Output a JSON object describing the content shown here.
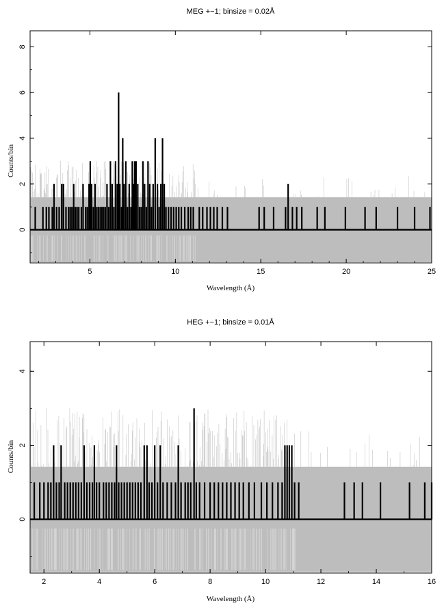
{
  "chart_data": [
    {
      "type": "bar",
      "title": "MEG +−1; binsize = 0.02Å",
      "xlabel": "Wavelength (Å)",
      "ylabel": "Counts/bin",
      "xlim": [
        1.5,
        25
      ],
      "ylim": [
        -1.45,
        8.7
      ],
      "xticks": [
        5,
        10,
        15,
        20,
        25
      ],
      "yticks": [
        0,
        2,
        4,
        6,
        8
      ],
      "grid": false,
      "error_band": {
        "upper": 1.42,
        "lower": -1.42,
        "dense_to": 11.2,
        "sparse_upper": 2.4,
        "dense_upper": 2.4
      },
      "bins": [
        {
          "x": 1.8,
          "y": 1
        },
        {
          "x": 2.25,
          "y": 1
        },
        {
          "x": 2.45,
          "y": 1
        },
        {
          "x": 2.6,
          "y": 1
        },
        {
          "x": 2.8,
          "y": 1
        },
        {
          "x": 2.9,
          "y": 2
        },
        {
          "x": 3.05,
          "y": 1
        },
        {
          "x": 3.2,
          "y": 1
        },
        {
          "x": 3.35,
          "y": 2
        },
        {
          "x": 3.45,
          "y": 2
        },
        {
          "x": 3.6,
          "y": 1
        },
        {
          "x": 3.75,
          "y": 1
        },
        {
          "x": 3.85,
          "y": 1
        },
        {
          "x": 3.95,
          "y": 1
        },
        {
          "x": 4.05,
          "y": 2
        },
        {
          "x": 4.15,
          "y": 1
        },
        {
          "x": 4.25,
          "y": 1
        },
        {
          "x": 4.35,
          "y": 1
        },
        {
          "x": 4.5,
          "y": 1
        },
        {
          "x": 4.6,
          "y": 2
        },
        {
          "x": 4.75,
          "y": 1
        },
        {
          "x": 4.85,
          "y": 1
        },
        {
          "x": 4.95,
          "y": 2
        },
        {
          "x": 5.02,
          "y": 3
        },
        {
          "x": 5.1,
          "y": 2
        },
        {
          "x": 5.2,
          "y": 1
        },
        {
          "x": 5.3,
          "y": 2
        },
        {
          "x": 5.4,
          "y": 1
        },
        {
          "x": 5.5,
          "y": 1
        },
        {
          "x": 5.6,
          "y": 1
        },
        {
          "x": 5.7,
          "y": 1
        },
        {
          "x": 5.8,
          "y": 1
        },
        {
          "x": 5.9,
          "y": 1
        },
        {
          "x": 6.0,
          "y": 2
        },
        {
          "x": 6.1,
          "y": 1
        },
        {
          "x": 6.2,
          "y": 3
        },
        {
          "x": 6.3,
          "y": 2
        },
        {
          "x": 6.4,
          "y": 1
        },
        {
          "x": 6.5,
          "y": 3
        },
        {
          "x": 6.6,
          "y": 2
        },
        {
          "x": 6.68,
          "y": 6
        },
        {
          "x": 6.75,
          "y": 2
        },
        {
          "x": 6.85,
          "y": 1
        },
        {
          "x": 6.92,
          "y": 4
        },
        {
          "x": 7.0,
          "y": 2
        },
        {
          "x": 7.1,
          "y": 3
        },
        {
          "x": 7.2,
          "y": 1
        },
        {
          "x": 7.3,
          "y": 2
        },
        {
          "x": 7.4,
          "y": 1
        },
        {
          "x": 7.48,
          "y": 3
        },
        {
          "x": 7.55,
          "y": 2
        },
        {
          "x": 7.62,
          "y": 3
        },
        {
          "x": 7.7,
          "y": 3
        },
        {
          "x": 7.8,
          "y": 2
        },
        {
          "x": 7.9,
          "y": 1
        },
        {
          "x": 8.0,
          "y": 1
        },
        {
          "x": 8.1,
          "y": 3
        },
        {
          "x": 8.2,
          "y": 2
        },
        {
          "x": 8.3,
          "y": 1
        },
        {
          "x": 8.4,
          "y": 3
        },
        {
          "x": 8.5,
          "y": 2
        },
        {
          "x": 8.6,
          "y": 1
        },
        {
          "x": 8.7,
          "y": 2
        },
        {
          "x": 8.82,
          "y": 4
        },
        {
          "x": 8.95,
          "y": 2
        },
        {
          "x": 9.05,
          "y": 1
        },
        {
          "x": 9.15,
          "y": 2
        },
        {
          "x": 9.25,
          "y": 4
        },
        {
          "x": 9.35,
          "y": 2
        },
        {
          "x": 9.45,
          "y": 1
        },
        {
          "x": 9.6,
          "y": 1
        },
        {
          "x": 9.75,
          "y": 1
        },
        {
          "x": 9.9,
          "y": 1
        },
        {
          "x": 10.05,
          "y": 1
        },
        {
          "x": 10.2,
          "y": 1
        },
        {
          "x": 10.35,
          "y": 1
        },
        {
          "x": 10.55,
          "y": 1
        },
        {
          "x": 10.75,
          "y": 1
        },
        {
          "x": 10.9,
          "y": 1
        },
        {
          "x": 11.05,
          "y": 1
        },
        {
          "x": 11.4,
          "y": 1
        },
        {
          "x": 11.6,
          "y": 1
        },
        {
          "x": 11.85,
          "y": 1
        },
        {
          "x": 12.05,
          "y": 1
        },
        {
          "x": 12.25,
          "y": 1
        },
        {
          "x": 12.45,
          "y": 1
        },
        {
          "x": 12.75,
          "y": 1
        },
        {
          "x": 13.05,
          "y": 1
        },
        {
          "x": 14.9,
          "y": 1
        },
        {
          "x": 15.2,
          "y": 1
        },
        {
          "x": 15.75,
          "y": 1
        },
        {
          "x": 16.45,
          "y": 1
        },
        {
          "x": 16.6,
          "y": 2
        },
        {
          "x": 16.85,
          "y": 1
        },
        {
          "x": 17.1,
          "y": 1
        },
        {
          "x": 17.4,
          "y": 1
        },
        {
          "x": 18.3,
          "y": 1
        },
        {
          "x": 18.75,
          "y": 1
        },
        {
          "x": 19.95,
          "y": 1
        },
        {
          "x": 21.1,
          "y": 1
        },
        {
          "x": 21.75,
          "y": 1
        },
        {
          "x": 23.0,
          "y": 1
        },
        {
          "x": 24.0,
          "y": 1
        },
        {
          "x": 24.9,
          "y": 1
        }
      ]
    },
    {
      "type": "bar",
      "title": "HEG +−1; binsize = 0.01Å",
      "xlabel": "Wavelength (Å)",
      "ylabel": "Counts/bin",
      "xlim": [
        1.5,
        16
      ],
      "ylim": [
        -1.45,
        4.8
      ],
      "xticks": [
        2,
        4,
        6,
        8,
        10,
        12,
        14,
        16
      ],
      "yticks": [
        0,
        2,
        4
      ],
      "grid": false,
      "error_band": {
        "upper": 1.42,
        "lower": -1.42,
        "dense_to": 11.1,
        "sparse_upper": 2.4,
        "dense_upper": 2.4
      },
      "bins": [
        {
          "x": 1.65,
          "y": 1
        },
        {
          "x": 1.85,
          "y": 1
        },
        {
          "x": 2.0,
          "y": 1
        },
        {
          "x": 2.15,
          "y": 1
        },
        {
          "x": 2.25,
          "y": 1
        },
        {
          "x": 2.35,
          "y": 2
        },
        {
          "x": 2.45,
          "y": 1
        },
        {
          "x": 2.55,
          "y": 1
        },
        {
          "x": 2.62,
          "y": 2
        },
        {
          "x": 2.75,
          "y": 1
        },
        {
          "x": 2.85,
          "y": 1
        },
        {
          "x": 2.95,
          "y": 1
        },
        {
          "x": 3.05,
          "y": 1
        },
        {
          "x": 3.15,
          "y": 1
        },
        {
          "x": 3.25,
          "y": 1
        },
        {
          "x": 3.35,
          "y": 1
        },
        {
          "x": 3.45,
          "y": 2
        },
        {
          "x": 3.55,
          "y": 1
        },
        {
          "x": 3.65,
          "y": 1
        },
        {
          "x": 3.75,
          "y": 1
        },
        {
          "x": 3.82,
          "y": 2
        },
        {
          "x": 3.9,
          "y": 1
        },
        {
          "x": 4.0,
          "y": 1
        },
        {
          "x": 4.15,
          "y": 1
        },
        {
          "x": 4.25,
          "y": 1
        },
        {
          "x": 4.35,
          "y": 1
        },
        {
          "x": 4.45,
          "y": 1
        },
        {
          "x": 4.55,
          "y": 1
        },
        {
          "x": 4.62,
          "y": 2
        },
        {
          "x": 4.7,
          "y": 1
        },
        {
          "x": 4.8,
          "y": 1
        },
        {
          "x": 4.9,
          "y": 1
        },
        {
          "x": 5.0,
          "y": 1
        },
        {
          "x": 5.1,
          "y": 1
        },
        {
          "x": 5.2,
          "y": 1
        },
        {
          "x": 5.3,
          "y": 1
        },
        {
          "x": 5.4,
          "y": 1
        },
        {
          "x": 5.5,
          "y": 1
        },
        {
          "x": 5.62,
          "y": 2
        },
        {
          "x": 5.72,
          "y": 2
        },
        {
          "x": 5.8,
          "y": 1
        },
        {
          "x": 5.9,
          "y": 1
        },
        {
          "x": 6.0,
          "y": 2
        },
        {
          "x": 6.1,
          "y": 1
        },
        {
          "x": 6.2,
          "y": 2
        },
        {
          "x": 6.3,
          "y": 1
        },
        {
          "x": 6.45,
          "y": 1
        },
        {
          "x": 6.6,
          "y": 1
        },
        {
          "x": 6.75,
          "y": 1
        },
        {
          "x": 6.85,
          "y": 2
        },
        {
          "x": 6.95,
          "y": 1
        },
        {
          "x": 7.1,
          "y": 1
        },
        {
          "x": 7.2,
          "y": 1
        },
        {
          "x": 7.3,
          "y": 1
        },
        {
          "x": 7.42,
          "y": 3
        },
        {
          "x": 7.5,
          "y": 1
        },
        {
          "x": 7.62,
          "y": 1
        },
        {
          "x": 7.8,
          "y": 1
        },
        {
          "x": 8.0,
          "y": 1
        },
        {
          "x": 8.15,
          "y": 1
        },
        {
          "x": 8.3,
          "y": 1
        },
        {
          "x": 8.45,
          "y": 1
        },
        {
          "x": 8.6,
          "y": 1
        },
        {
          "x": 8.75,
          "y": 1
        },
        {
          "x": 8.9,
          "y": 1
        },
        {
          "x": 9.05,
          "y": 1
        },
        {
          "x": 9.2,
          "y": 1
        },
        {
          "x": 9.4,
          "y": 1
        },
        {
          "x": 9.6,
          "y": 1
        },
        {
          "x": 9.85,
          "y": 1
        },
        {
          "x": 10.05,
          "y": 1
        },
        {
          "x": 10.25,
          "y": 1
        },
        {
          "x": 10.45,
          "y": 1
        },
        {
          "x": 10.6,
          "y": 1
        },
        {
          "x": 10.7,
          "y": 2
        },
        {
          "x": 10.78,
          "y": 2
        },
        {
          "x": 10.86,
          "y": 2
        },
        {
          "x": 10.95,
          "y": 2
        },
        {
          "x": 11.05,
          "y": 1
        },
        {
          "x": 11.2,
          "y": 1
        },
        {
          "x": 12.85,
          "y": 1
        },
        {
          "x": 13.2,
          "y": 1
        },
        {
          "x": 13.5,
          "y": 1
        },
        {
          "x": 14.15,
          "y": 1
        },
        {
          "x": 15.2,
          "y": 1
        },
        {
          "x": 15.75,
          "y": 1
        },
        {
          "x": 16.0,
          "y": 1
        }
      ]
    }
  ]
}
